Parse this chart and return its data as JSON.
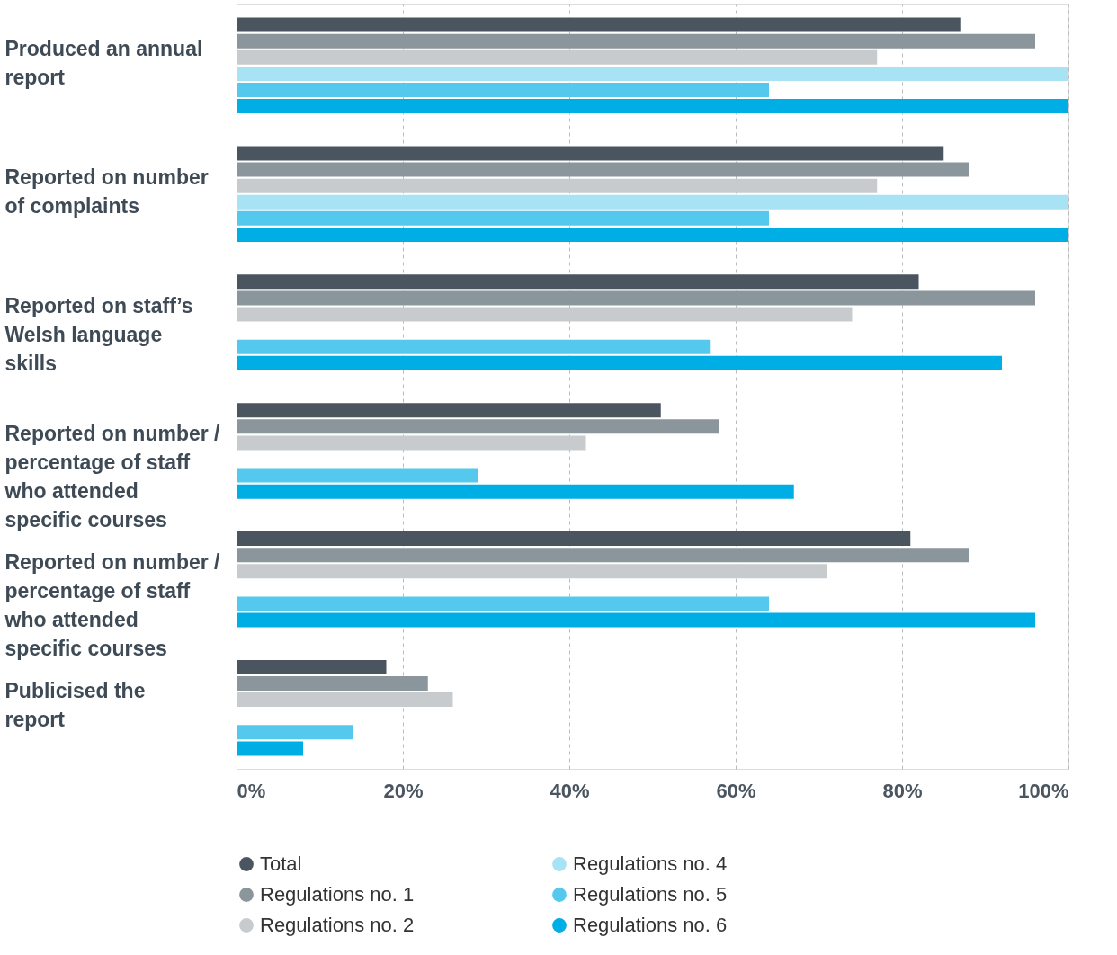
{
  "chart_data": {
    "type": "bar",
    "orientation": "horizontal",
    "categories": [
      "Produced an annual report",
      "Reported on number of complaints",
      "Reported on staff’s Welsh language skills",
      "Reported on number / percentage of staff who attended specific courses",
      "Reported on number / percentage of staff who attended specific courses",
      "Publicised the report"
    ],
    "series": [
      {
        "name": "Total",
        "color": "#4a5560",
        "values": [
          87,
          85,
          82,
          51,
          81,
          18
        ]
      },
      {
        "name": "Regulations no. 1",
        "color": "#8a959c",
        "values": [
          96,
          88,
          96,
          58,
          88,
          23
        ]
      },
      {
        "name": "Regulations no. 2",
        "color": "#c8cbce",
        "values": [
          77,
          77,
          74,
          42,
          71,
          26
        ]
      },
      {
        "name": "Regulations no. 4",
        "color": "#a8e2f5",
        "values": [
          100,
          100,
          null,
          null,
          null,
          null
        ]
      },
      {
        "name": "Regulations no. 5",
        "color": "#55c8ee",
        "values": [
          64,
          64,
          57,
          29,
          64,
          14
        ]
      },
      {
        "name": "Regulations no. 6",
        "color": "#00aee6",
        "values": [
          100,
          100,
          92,
          67,
          96,
          8
        ]
      }
    ],
    "xlim": [
      0,
      100
    ],
    "xticks": [
      {
        "value": 0,
        "label": "0%"
      },
      {
        "value": 20,
        "label": "20%"
      },
      {
        "value": 40,
        "label": "40%"
      },
      {
        "value": 60,
        "label": "60%"
      },
      {
        "value": 80,
        "label": "80%"
      },
      {
        "value": 100,
        "label": "100%"
      }
    ],
    "grid": "x",
    "legend": "bottom"
  }
}
